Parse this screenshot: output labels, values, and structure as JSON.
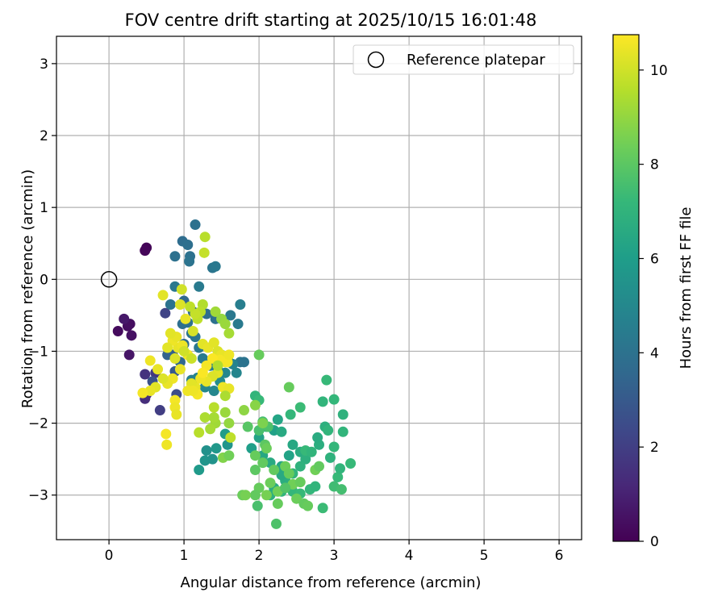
{
  "chart_data": {
    "type": "scatter",
    "title": "FOV centre drift starting at 2025/10/15 16:01:48",
    "xlabel": "Angular distance from reference (arcmin)",
    "ylabel": "Rotation from reference (arcmin)",
    "xlim": [
      -0.7,
      6.3
    ],
    "ylim": [
      -3.62,
      3.38
    ],
    "xticks": [
      0,
      1,
      2,
      3,
      4,
      5,
      6
    ],
    "yticks": [
      -3,
      -2,
      -1,
      0,
      1,
      2,
      3
    ],
    "xtick_labels": [
      "0",
      "1",
      "2",
      "3",
      "4",
      "5",
      "6"
    ],
    "ytick_labels": [
      "−3",
      "−2",
      "−1",
      "0",
      "1",
      "2",
      "3"
    ],
    "grid": true,
    "legend": {
      "position": "top-right",
      "label": "Reference platepar"
    },
    "reference_point": {
      "x": 0,
      "y": 0
    },
    "colorbar": {
      "label": "Hours from first FF file",
      "range": [
        0,
        10.75
      ],
      "ticks": [
        0,
        2,
        4,
        6,
        8,
        10
      ],
      "tick_labels": [
        "0",
        "2",
        "4",
        "6",
        "8",
        "10"
      ],
      "colormap": "viridis"
    },
    "colors": {
      "viridis": [
        "#440154",
        "#482878",
        "#3e4989",
        "#31688e",
        "#26828e",
        "#1f9e89",
        "#35b779",
        "#6ece58",
        "#b5de2b",
        "#fde725"
      ]
    },
    "points": [
      [
        0.5,
        0.44,
        0.1
      ],
      [
        0.48,
        0.4,
        0.15
      ],
      [
        0.12,
        -0.72,
        0.3
      ],
      [
        0.25,
        -0.65,
        0.35
      ],
      [
        0.28,
        -0.62,
        0.4
      ],
      [
        0.3,
        -0.78,
        0.5
      ],
      [
        0.27,
        -1.05,
        0.6
      ],
      [
        0.2,
        -0.55,
        0.7
      ],
      [
        0.5,
        -1.6,
        1.2
      ],
      [
        0.48,
        -1.66,
        1.4
      ],
      [
        0.48,
        -1.32,
        1.6
      ],
      [
        0.62,
        -1.3,
        1.8
      ],
      [
        0.68,
        -1.82,
        2.0
      ],
      [
        0.75,
        -0.47,
        2.2
      ],
      [
        0.9,
        -1.6,
        2.5
      ],
      [
        0.58,
        -1.42,
        2.7
      ],
      [
        0.88,
        -1.28,
        3.0
      ],
      [
        0.85,
        -1.05,
        3.2
      ],
      [
        0.78,
        -1.05,
        3.4
      ],
      [
        0.95,
        -1.15,
        3.6
      ],
      [
        1.0,
        -0.9,
        3.8
      ],
      [
        0.98,
        -0.62,
        3.9
      ],
      [
        1.05,
        -0.6,
        4.0
      ],
      [
        1.1,
        -0.75,
        4.1
      ],
      [
        1.15,
        -0.8,
        4.2
      ],
      [
        1.2,
        -0.95,
        4.3
      ],
      [
        1.25,
        -1.1,
        4.4
      ],
      [
        1.35,
        -1.2,
        4.5
      ],
      [
        1.45,
        -1.25,
        4.6
      ],
      [
        1.5,
        -1.05,
        4.7
      ],
      [
        1.6,
        -1.15,
        4.8
      ],
      [
        1.7,
        -1.3,
        4.9
      ],
      [
        1.75,
        -1.15,
        4.2
      ],
      [
        1.8,
        -1.15,
        4.1
      ],
      [
        1.72,
        -0.62,
        4.4
      ],
      [
        1.75,
        -0.35,
        4.6
      ],
      [
        1.62,
        -0.5,
        4.3
      ],
      [
        1.42,
        -0.55,
        4.0
      ],
      [
        1.3,
        -0.48,
        3.8
      ],
      [
        1.12,
        -0.45,
        3.7
      ],
      [
        1.0,
        -0.3,
        3.6
      ],
      [
        0.98,
        0.53,
        3.8
      ],
      [
        1.05,
        0.48,
        3.9
      ],
      [
        1.08,
        0.32,
        4.0
      ],
      [
        1.07,
        0.25,
        4.1
      ],
      [
        1.15,
        0.76,
        4.0
      ],
      [
        1.38,
        0.16,
        4.2
      ],
      [
        1.42,
        0.18,
        4.3
      ],
      [
        0.88,
        0.32,
        4.0
      ],
      [
        0.88,
        -0.1,
        4.3
      ],
      [
        1.2,
        -0.1,
        4.4
      ],
      [
        0.82,
        -0.35,
        4.1
      ],
      [
        1.1,
        -1.4,
        4.6
      ],
      [
        1.18,
        -1.37,
        4.8
      ],
      [
        1.28,
        -1.5,
        5.0
      ],
      [
        1.4,
        -1.55,
        5.0
      ],
      [
        1.48,
        -1.42,
        5.2
      ],
      [
        1.55,
        -1.3,
        5.0
      ],
      [
        1.65,
        -1.18,
        4.8
      ],
      [
        1.3,
        -2.38,
        5.4
      ],
      [
        1.28,
        -2.52,
        5.6
      ],
      [
        1.38,
        -2.5,
        5.5
      ],
      [
        1.43,
        -2.35,
        5.7
      ],
      [
        1.2,
        -2.65,
        5.8
      ],
      [
        1.58,
        -2.3,
        5.6
      ],
      [
        1.55,
        -2.15,
        5.9
      ],
      [
        1.9,
        -2.35,
        6.0
      ],
      [
        2.0,
        -2.2,
        6.2
      ],
      [
        2.1,
        -2.05,
        6.3
      ],
      [
        2.2,
        -2.1,
        6.1
      ],
      [
        2.05,
        -2.45,
        6.4
      ],
      [
        2.15,
        -2.55,
        6.5
      ],
      [
        2.3,
        -2.6,
        6.3
      ],
      [
        2.4,
        -2.45,
        6.2
      ],
      [
        2.45,
        -2.3,
        6.4
      ],
      [
        2.55,
        -2.4,
        6.6
      ],
      [
        2.62,
        -2.5,
        6.8
      ],
      [
        2.55,
        -2.6,
        6.9
      ],
      [
        2.45,
        -2.7,
        7.0
      ],
      [
        2.35,
        -2.8,
        6.7
      ],
      [
        2.3,
        -2.72,
        6.5
      ],
      [
        2.2,
        -2.9,
        6.6
      ],
      [
        2.15,
        -3.0,
        6.8
      ],
      [
        2.3,
        -2.95,
        7.0
      ],
      [
        2.45,
        -2.95,
        7.1
      ],
      [
        2.55,
        -2.98,
        7.2
      ],
      [
        2.68,
        -2.92,
        7.1
      ],
      [
        2.75,
        -2.88,
        7.0
      ],
      [
        2.85,
        -3.18,
        7.3
      ],
      [
        3.0,
        -2.88,
        7.4
      ],
      [
        3.05,
        -2.75,
        7.2
      ],
      [
        3.1,
        -2.92,
        7.5
      ],
      [
        3.22,
        -2.56,
        7.2
      ],
      [
        3.08,
        -2.63,
        7.0
      ],
      [
        2.95,
        -2.48,
        6.9
      ],
      [
        2.8,
        -2.3,
        6.7
      ],
      [
        2.78,
        -2.2,
        6.6
      ],
      [
        2.88,
        -2.05,
        6.8
      ],
      [
        2.92,
        -2.1,
        7.0
      ],
      [
        3.0,
        -2.33,
        7.1
      ],
      [
        3.12,
        -2.12,
        7.0
      ],
      [
        3.12,
        -1.88,
        6.9
      ],
      [
        3.0,
        -1.67,
        7.1
      ],
      [
        2.85,
        -1.7,
        7.0
      ],
      [
        2.9,
        -1.4,
        7.2
      ],
      [
        2.42,
        -1.88,
        7.1
      ],
      [
        2.55,
        -1.78,
        7.3
      ],
      [
        2.62,
        -2.38,
        7.2
      ],
      [
        2.7,
        -2.4,
        7.0
      ],
      [
        2.3,
        -2.12,
        6.5
      ],
      [
        2.25,
        -1.95,
        6.3
      ],
      [
        1.95,
        -1.62,
        7.0
      ],
      [
        2.0,
        -1.68,
        7.2
      ],
      [
        2.05,
        -1.98,
        7.5
      ],
      [
        2.12,
        -2.05,
        7.7
      ],
      [
        2.0,
        -2.1,
        7.6
      ],
      [
        1.85,
        -2.05,
        7.9
      ],
      [
        2.08,
        -2.3,
        8.0
      ],
      [
        1.95,
        -2.45,
        8.2
      ],
      [
        2.05,
        -2.55,
        8.1
      ],
      [
        2.1,
        -2.35,
        8.3
      ],
      [
        1.95,
        -2.65,
        8.0
      ],
      [
        2.0,
        -2.9,
        8.2
      ],
      [
        1.95,
        -3.0,
        8.1
      ],
      [
        2.15,
        -2.83,
        8.3
      ],
      [
        2.25,
        -2.95,
        8.4
      ],
      [
        2.25,
        -3.12,
        8.2
      ],
      [
        2.1,
        -3.0,
        8.5
      ],
      [
        2.2,
        -2.65,
        8.1
      ],
      [
        2.35,
        -2.6,
        8.3
      ],
      [
        2.4,
        -2.7,
        8.2
      ],
      [
        2.45,
        -2.85,
        8.4
      ],
      [
        2.55,
        -2.82,
        8.2
      ],
      [
        2.5,
        -3.05,
        8.3
      ],
      [
        2.6,
        -3.12,
        8.1
      ],
      [
        2.65,
        -3.15,
        8.2
      ],
      [
        2.75,
        -2.65,
        8.4
      ],
      [
        2.8,
        -2.6,
        8.1
      ],
      [
        2.35,
        -2.9,
        7.8
      ],
      [
        1.78,
        -3.0,
        8.3
      ],
      [
        1.82,
        -3.0,
        8.5
      ],
      [
        1.98,
        -3.15,
        7.6
      ],
      [
        2.23,
        -3.4,
        7.7
      ],
      [
        2.4,
        -1.5,
        8.2
      ],
      [
        2.0,
        -1.05,
        8.2
      ],
      [
        2.05,
        -2.0,
        8.6
      ],
      [
        1.95,
        -1.75,
        8.8
      ],
      [
        1.8,
        -1.82,
        8.9
      ],
      [
        1.6,
        -2.0,
        9.0
      ],
      [
        1.55,
        -1.85,
        9.1
      ],
      [
        1.52,
        -2.48,
        8.7
      ],
      [
        1.6,
        -2.45,
        8.4
      ],
      [
        1.42,
        -2.0,
        9.2
      ],
      [
        1.35,
        -2.08,
        9.3
      ],
      [
        1.28,
        -1.92,
        9.4
      ],
      [
        1.4,
        -1.92,
        9.3
      ],
      [
        1.2,
        -2.13,
        9.6
      ],
      [
        1.25,
        -0.35,
        9.5
      ],
      [
        1.42,
        -0.45,
        9.2
      ],
      [
        1.5,
        -0.55,
        9.0
      ],
      [
        1.55,
        -0.62,
        9.1
      ],
      [
        1.6,
        -0.75,
        9.3
      ],
      [
        1.22,
        -0.45,
        9.6
      ],
      [
        1.18,
        -0.55,
        9.7
      ],
      [
        1.15,
        -0.48,
        9.8
      ],
      [
        1.08,
        -0.38,
        9.7
      ],
      [
        1.28,
        0.59,
        9.6
      ],
      [
        1.27,
        0.37,
        9.8
      ],
      [
        0.72,
        -0.22,
        10.3
      ],
      [
        0.97,
        -0.14,
        10.0
      ],
      [
        0.95,
        -0.35,
        10.2
      ],
      [
        1.02,
        -0.55,
        10.4
      ],
      [
        1.12,
        -0.72,
        10.1
      ],
      [
        1.25,
        -0.9,
        10.3
      ],
      [
        1.32,
        -0.95,
        10.4
      ],
      [
        1.4,
        -0.88,
        10.3
      ],
      [
        1.45,
        -1.0,
        10.2
      ],
      [
        1.5,
        -1.05,
        10.4
      ],
      [
        1.55,
        -1.15,
        10.5
      ],
      [
        1.45,
        -1.3,
        10.3
      ],
      [
        1.38,
        -1.35,
        10.2
      ],
      [
        1.3,
        -1.42,
        10.4
      ],
      [
        1.22,
        -1.38,
        10.5
      ],
      [
        1.15,
        -1.5,
        10.4
      ],
      [
        1.1,
        -1.45,
        10.3
      ],
      [
        1.05,
        -1.55,
        10.5
      ],
      [
        0.95,
        -1.25,
        10.4
      ],
      [
        0.88,
        -1.1,
        10.2
      ],
      [
        0.92,
        -0.95,
        10.4
      ],
      [
        0.85,
        -0.85,
        10.5
      ],
      [
        0.78,
        -0.95,
        10.3
      ],
      [
        0.85,
        -1.38,
        10.5
      ],
      [
        0.78,
        -1.45,
        10.4
      ],
      [
        0.72,
        -1.38,
        10.2
      ],
      [
        0.62,
        -1.5,
        10.3
      ],
      [
        0.55,
        -1.55,
        10.4
      ],
      [
        0.45,
        -1.58,
        10.6
      ],
      [
        0.55,
        -1.13,
        10.5
      ],
      [
        0.65,
        -1.25,
        10.4
      ],
      [
        0.88,
        -1.68,
        10.6
      ],
      [
        0.88,
        -1.78,
        10.5
      ],
      [
        0.9,
        -1.88,
        10.4
      ],
      [
        0.76,
        -2.15,
        10.6
      ],
      [
        0.77,
        -2.3,
        10.5
      ],
      [
        1.18,
        -1.6,
        10.6
      ],
      [
        1.12,
        -1.55,
        10.5
      ],
      [
        1.3,
        -1.2,
        10.6
      ],
      [
        1.25,
        -1.3,
        10.7
      ],
      [
        1.52,
        -1.5,
        10.5
      ],
      [
        1.6,
        -1.52,
        10.4
      ],
      [
        1.58,
        -1.15,
        10.6
      ],
      [
        1.6,
        -1.05,
        10.5
      ],
      [
        1.48,
        -1.12,
        10.6
      ],
      [
        1.38,
        -1.1,
        10.7
      ],
      [
        1.05,
        -1.05,
        10.6
      ],
      [
        0.98,
        -0.92,
        10.5
      ],
      [
        0.9,
        -0.8,
        10.4
      ],
      [
        0.82,
        -0.75,
        10.3
      ],
      [
        1.0,
        -1.0,
        10.0
      ],
      [
        1.1,
        -1.1,
        9.9
      ],
      [
        1.45,
        -1.2,
        9.5
      ],
      [
        1.55,
        -1.62,
        9.4
      ],
      [
        1.4,
        -1.78,
        9.6
      ],
      [
        1.62,
        -2.2,
        9.7
      ]
    ]
  }
}
